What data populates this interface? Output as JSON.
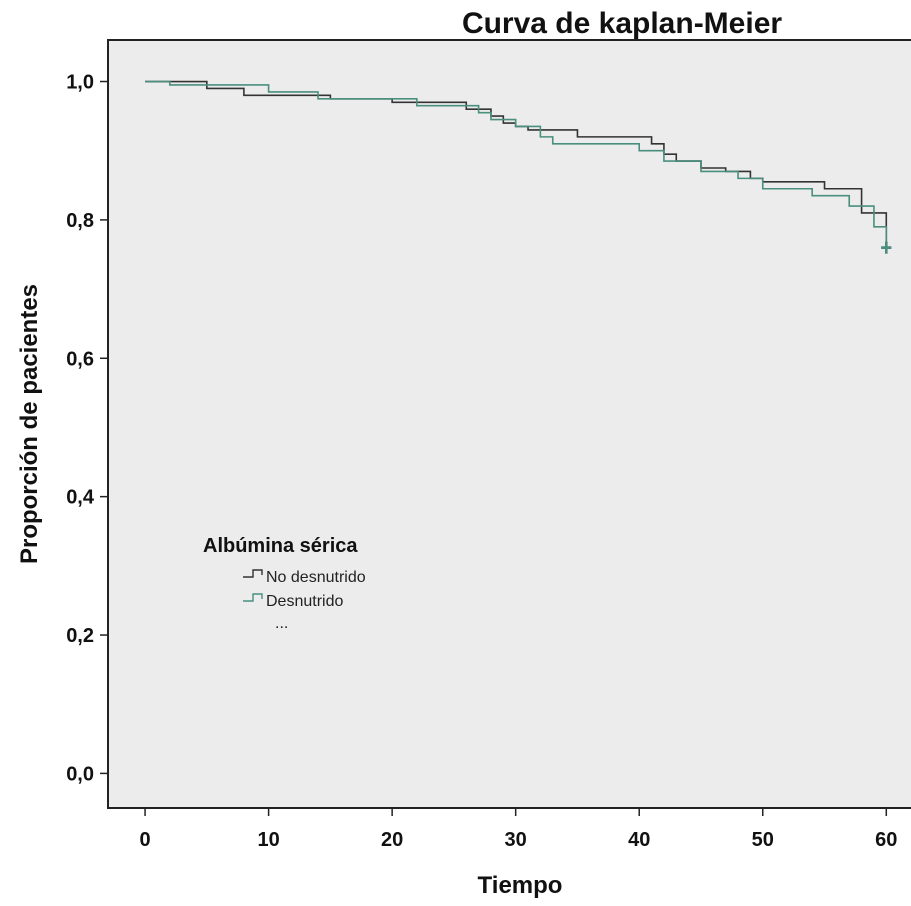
{
  "chart_data": {
    "type": "line",
    "subtype": "kaplan-meier-step",
    "title": "Curva de kaplan-Meier",
    "xlabel": "Tiempo",
    "ylabel": "Proporción de pacientes",
    "xlim": [
      -3,
      62
    ],
    "ylim": [
      -0.05,
      1.06
    ],
    "xticks": [
      0,
      10,
      20,
      30,
      40,
      50,
      60
    ],
    "xtick_labels": [
      "0",
      "10",
      "20",
      "30",
      "40",
      "50",
      "60"
    ],
    "yticks": [
      0.0,
      0.2,
      0.4,
      0.6,
      0.8,
      1.0
    ],
    "ytick_labels": [
      "0,0",
      "0,2",
      "0,4",
      "0,6",
      "0,8",
      "1,0"
    ],
    "grid": false,
    "legend": {
      "title": "Albúmina sérica",
      "placement": "center-left",
      "extra_text": "..."
    },
    "series": [
      {
        "name": "No desnutrido",
        "color": "#333333",
        "x": [
          0,
          5,
          8,
          15,
          20,
          26,
          28,
          29,
          30,
          31,
          35,
          41,
          42,
          43,
          45,
          47,
          49,
          50,
          55,
          58,
          60
        ],
        "y": [
          1.0,
          0.99,
          0.98,
          0.975,
          0.97,
          0.96,
          0.95,
          0.94,
          0.935,
          0.93,
          0.92,
          0.91,
          0.895,
          0.885,
          0.875,
          0.87,
          0.86,
          0.855,
          0.845,
          0.81,
          0.76
        ]
      },
      {
        "name": "Desnutrido",
        "color": "#4a8f7e",
        "x": [
          0,
          2,
          10,
          14,
          22,
          27,
          28,
          30,
          32,
          33,
          40,
          42,
          45,
          48,
          50,
          54,
          57,
          59,
          60
        ],
        "y": [
          1.0,
          0.995,
          0.985,
          0.975,
          0.965,
          0.955,
          0.945,
          0.935,
          0.92,
          0.91,
          0.9,
          0.885,
          0.87,
          0.86,
          0.845,
          0.835,
          0.82,
          0.79,
          0.76
        ]
      }
    ]
  }
}
